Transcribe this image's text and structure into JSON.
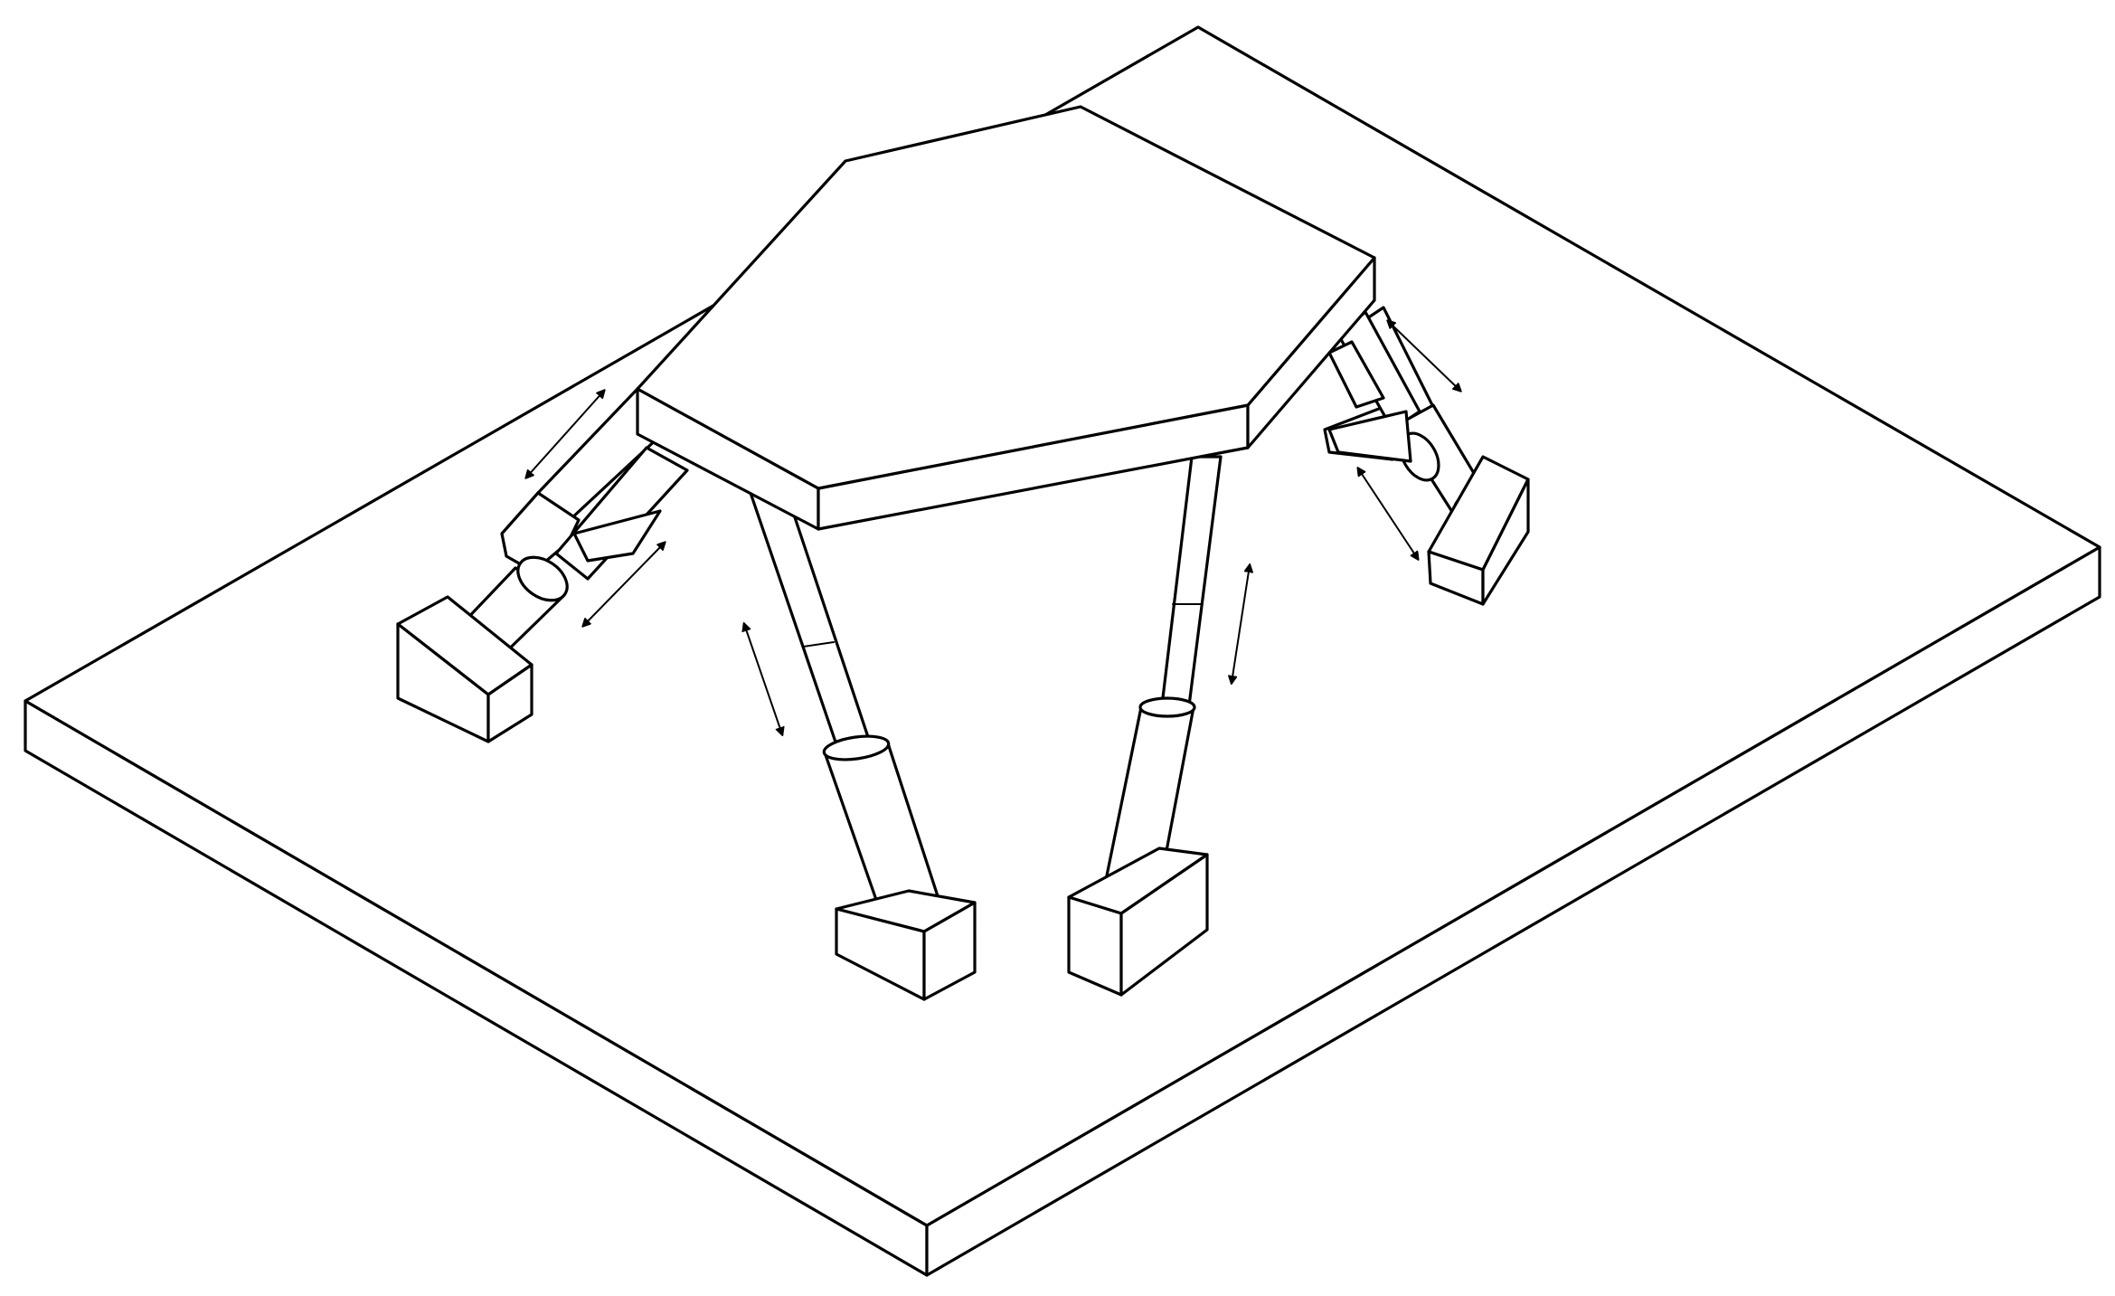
{
  "diagram": {
    "subject": "hexapod-parallel-platform",
    "style": "isometric-line-drawing",
    "stroke_color": "#000000",
    "fill_color": "#ffffff",
    "parts": {
      "base_plate": "base-plate",
      "top_platform": "hexagonal-top-platform",
      "legs": [
        "leg-left-rear",
        "leg-left-front",
        "leg-front-left",
        "leg-front-right",
        "leg-right-rear",
        "leg-right-front"
      ],
      "motion_arrows": 8
    }
  }
}
